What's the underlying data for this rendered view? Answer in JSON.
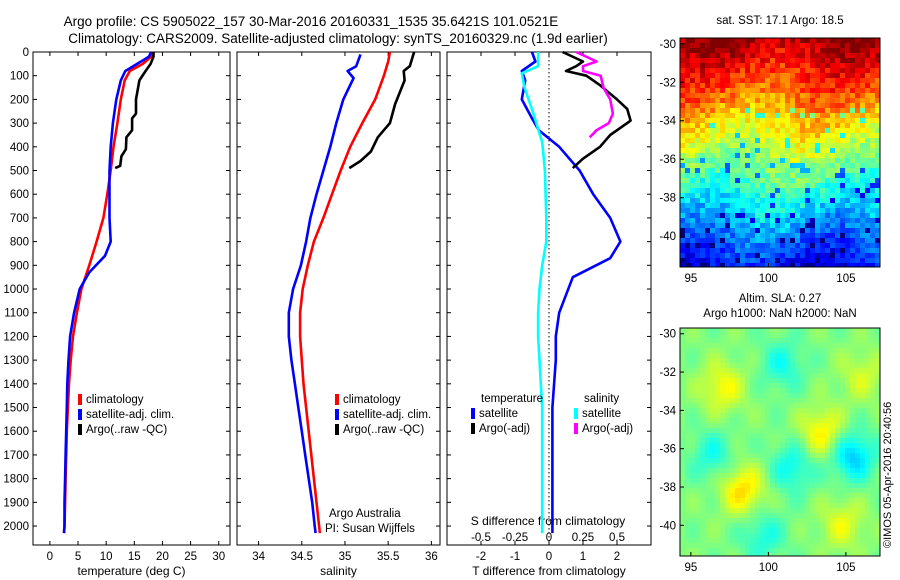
{
  "figure": {
    "title_line1": "Argo profile: CS 5905022_157 30-Mar-2016 20160331_1535 35.6421S 101.0521E",
    "title_line2": "Climatology: CARS2009. Satellite-adjusted climatology: synTS_20160329.nc (1.9d earlier)",
    "credit": "©IMOS 05-Apr-2016 20:40:56"
  },
  "colors": {
    "climatology": "#ff0000",
    "satellite": "#0000ff",
    "argo": "#000000",
    "satellite_s": "#00ffff",
    "argo_s": "#ff00ff"
  },
  "chart_data": [
    {
      "id": "temperature",
      "type": "line",
      "xlabel": "temperature (deg C)",
      "ylabel": "",
      "xlim": [
        -3,
        32
      ],
      "ylim": [
        0,
        2080
      ],
      "y_inverted": true,
      "xticks": [
        0,
        5,
        10,
        15,
        20,
        25,
        30
      ],
      "yticks": [
        0,
        100,
        200,
        300,
        400,
        500,
        600,
        700,
        800,
        900,
        1000,
        1100,
        1200,
        1300,
        1400,
        1500,
        1600,
        1700,
        1800,
        1900,
        2000
      ],
      "legend": {
        "position": "bottom-right",
        "entries": [
          "climatology",
          "satellite-adj. clim.",
          "Argo(..raw -QC)"
        ]
      },
      "series": [
        {
          "name": "climatology",
          "color_key": "climatology",
          "points": [
            [
              18.5,
              0
            ],
            [
              18.0,
              20
            ],
            [
              16.5,
              50
            ],
            [
              14.2,
              80
            ],
            [
              13.3,
              120
            ],
            [
              12.6,
              200
            ],
            [
              12.0,
              300
            ],
            [
              11.3,
              400
            ],
            [
              10.8,
              500
            ],
            [
              10.2,
              600
            ],
            [
              9.5,
              700
            ],
            [
              8.3,
              800
            ],
            [
              7.0,
              900
            ],
            [
              5.6,
              1000
            ],
            [
              4.8,
              1100
            ],
            [
              4.1,
              1200
            ],
            [
              3.7,
              1300
            ],
            [
              3.4,
              1400
            ],
            [
              3.2,
              1500
            ],
            [
              3.0,
              1600
            ],
            [
              2.9,
              1700
            ],
            [
              2.8,
              1800
            ],
            [
              2.7,
              1900
            ],
            [
              2.6,
              2000
            ],
            [
              2.5,
              2030
            ]
          ]
        },
        {
          "name": "satellite-adj. clim.",
          "color_key": "satellite",
          "points": [
            [
              18.0,
              0
            ],
            [
              17.6,
              20
            ],
            [
              15.5,
              50
            ],
            [
              13.4,
              80
            ],
            [
              12.6,
              120
            ],
            [
              11.8,
              200
            ],
            [
              11.2,
              300
            ],
            [
              10.8,
              400
            ],
            [
              10.6,
              500
            ],
            [
              10.6,
              600
            ],
            [
              10.6,
              700
            ],
            [
              10.8,
              800
            ],
            [
              9.8,
              860
            ],
            [
              7.0,
              930
            ],
            [
              5.3,
              1000
            ],
            [
              4.3,
              1100
            ],
            [
              3.6,
              1200
            ],
            [
              3.3,
              1300
            ],
            [
              3.1,
              1400
            ],
            [
              3.0,
              1500
            ],
            [
              2.9,
              1600
            ],
            [
              2.8,
              1700
            ],
            [
              2.7,
              1800
            ],
            [
              2.6,
              1900
            ],
            [
              2.6,
              2000
            ],
            [
              2.5,
              2030
            ]
          ]
        },
        {
          "name": "Argo(..raw -QC)",
          "color_key": "argo",
          "points": [
            [
              18.4,
              0
            ],
            [
              18.4,
              20
            ],
            [
              17.9,
              50
            ],
            [
              17.0,
              80
            ],
            [
              15.9,
              120
            ],
            [
              15.3,
              200
            ],
            [
              15.3,
              260
            ],
            [
              14.6,
              280
            ],
            [
              14.6,
              330
            ],
            [
              13.6,
              360
            ],
            [
              13.5,
              410
            ],
            [
              12.7,
              440
            ],
            [
              12.5,
              480
            ],
            [
              11.6,
              490
            ]
          ]
        }
      ]
    },
    {
      "id": "salinity",
      "type": "line",
      "xlabel": "salinity",
      "ylabel": "",
      "xlim": [
        33.75,
        36.1
      ],
      "ylim": [
        0,
        2080
      ],
      "y_inverted": true,
      "xticks": [
        34,
        34.5,
        35,
        35.5,
        36
      ],
      "annotation_line1": "Argo Australia",
      "annotation_line2": "PI: Susan Wijffels",
      "legend": {
        "position": "bottom-right",
        "entries": [
          "climatology",
          "satellite-adj. clim.",
          "Argo(..raw -QC)"
        ]
      },
      "series": [
        {
          "name": "climatology",
          "color_key": "climatology",
          "points": [
            [
              35.52,
              0
            ],
            [
              35.5,
              40
            ],
            [
              35.45,
              100
            ],
            [
              35.35,
              200
            ],
            [
              35.2,
              300
            ],
            [
              35.06,
              400
            ],
            [
              34.95,
              500
            ],
            [
              34.85,
              600
            ],
            [
              34.75,
              700
            ],
            [
              34.64,
              800
            ],
            [
              34.57,
              900
            ],
            [
              34.51,
              1000
            ],
            [
              34.48,
              1100
            ],
            [
              34.48,
              1200
            ],
            [
              34.5,
              1300
            ],
            [
              34.52,
              1400
            ],
            [
              34.55,
              1500
            ],
            [
              34.58,
              1600
            ],
            [
              34.61,
              1700
            ],
            [
              34.64,
              1800
            ],
            [
              34.67,
              1900
            ],
            [
              34.7,
              2000
            ],
            [
              34.71,
              2030
            ]
          ]
        },
        {
          "name": "satellite-adj. clim.",
          "color_key": "satellite",
          "points": [
            [
              35.18,
              10
            ],
            [
              35.13,
              60
            ],
            [
              35.03,
              80
            ],
            [
              35.1,
              110
            ],
            [
              34.98,
              200
            ],
            [
              34.9,
              300
            ],
            [
              34.83,
              400
            ],
            [
              34.75,
              500
            ],
            [
              34.67,
              600
            ],
            [
              34.6,
              700
            ],
            [
              34.55,
              800
            ],
            [
              34.49,
              900
            ],
            [
              34.4,
              1000
            ],
            [
              34.35,
              1100
            ],
            [
              34.35,
              1200
            ],
            [
              34.38,
              1300
            ],
            [
              34.42,
              1400
            ],
            [
              34.46,
              1500
            ],
            [
              34.5,
              1600
            ],
            [
              34.54,
              1700
            ],
            [
              34.58,
              1800
            ],
            [
              34.62,
              1900
            ],
            [
              34.65,
              2000
            ],
            [
              34.66,
              2030
            ]
          ]
        },
        {
          "name": "Argo(..raw -QC)",
          "color_key": "argo",
          "points": [
            [
              35.8,
              0
            ],
            [
              35.75,
              60
            ],
            [
              35.68,
              80
            ],
            [
              35.69,
              120
            ],
            [
              35.58,
              220
            ],
            [
              35.52,
              300
            ],
            [
              35.38,
              360
            ],
            [
              35.3,
              420
            ],
            [
              35.18,
              460
            ],
            [
              35.05,
              490
            ]
          ]
        }
      ]
    },
    {
      "id": "difference",
      "type": "line",
      "xlabel": "T difference from climatology",
      "x2label": "S difference from climatology",
      "ylabel": "",
      "xlim": [
        -3,
        3
      ],
      "x2lim": [
        -0.75,
        0.75
      ],
      "ylim": [
        0,
        2080
      ],
      "y_inverted": true,
      "xticks": [
        -2,
        -1,
        0,
        1,
        2
      ],
      "x2ticks": [
        -0.5,
        -0.25,
        0,
        0.25,
        0.5
      ],
      "zero_line": true,
      "legend_left_title": "temperature",
      "legend_right_title": "salinity",
      "legend_left_entries": [
        "satellite",
        "Argo(-adj)"
      ],
      "legend_right_entries": [
        "satellite",
        "Argo(-adj)"
      ],
      "series": [
        {
          "name": "satellite",
          "quantity": "T",
          "color_key": "satellite",
          "points": [
            [
              -0.5,
              0
            ],
            [
              -0.4,
              40
            ],
            [
              -0.8,
              80
            ],
            [
              -0.7,
              120
            ],
            [
              -0.8,
              200
            ],
            [
              -0.5,
              280
            ],
            [
              -0.3,
              330
            ],
            [
              0.3,
              400
            ],
            [
              0.6,
              450
            ],
            [
              0.9,
              500
            ],
            [
              1.3,
              600
            ],
            [
              1.8,
              700
            ],
            [
              2.1,
              800
            ],
            [
              1.8,
              870
            ],
            [
              0.7,
              950
            ],
            [
              0.3,
              1100
            ],
            [
              0.2,
              1200
            ],
            [
              0.2,
              1300
            ],
            [
              0.15,
              1400
            ],
            [
              0.1,
              1500
            ],
            [
              0.1,
              1600
            ],
            [
              0.1,
              1700
            ],
            [
              0.1,
              1800
            ],
            [
              0.1,
              1900
            ],
            [
              0.1,
              2030
            ]
          ]
        },
        {
          "name": "Argo(-adj)",
          "quantity": "T",
          "color_key": "argo",
          "points": [
            [
              0.4,
              0
            ],
            [
              1.0,
              40
            ],
            [
              0.8,
              60
            ],
            [
              0.5,
              80
            ],
            [
              1.1,
              100
            ],
            [
              1.5,
              140
            ],
            [
              2.0,
              200
            ],
            [
              2.3,
              240
            ],
            [
              2.4,
              290
            ],
            [
              1.8,
              350
            ],
            [
              1.5,
              400
            ],
            [
              1.0,
              450
            ],
            [
              0.7,
              490
            ]
          ]
        },
        {
          "name": "satellite",
          "quantity": "S",
          "color_key": "satellite_s",
          "points": [
            [
              -0.08,
              0
            ],
            [
              -0.08,
              60
            ],
            [
              -0.2,
              90
            ],
            [
              -0.18,
              150
            ],
            [
              -0.12,
              250
            ],
            [
              -0.05,
              380
            ],
            [
              -0.03,
              500
            ],
            [
              -0.02,
              700
            ],
            [
              -0.02,
              800
            ],
            [
              -0.05,
              900
            ],
            [
              -0.07,
              1000
            ],
            [
              -0.08,
              1100
            ],
            [
              -0.08,
              1200
            ],
            [
              -0.07,
              1300
            ],
            [
              -0.06,
              1400
            ],
            [
              -0.05,
              1500
            ],
            [
              -0.05,
              1600
            ],
            [
              -0.05,
              1700
            ],
            [
              -0.05,
              1800
            ],
            [
              -0.05,
              1900
            ],
            [
              -0.05,
              2030
            ]
          ]
        },
        {
          "name": "Argo(-adj)",
          "quantity": "S",
          "color_key": "argo_s",
          "points": [
            [
              0.2,
              0
            ],
            [
              0.35,
              40
            ],
            [
              0.25,
              60
            ],
            [
              0.25,
              80
            ],
            [
              0.38,
              100
            ],
            [
              0.4,
              150
            ],
            [
              0.45,
              200
            ],
            [
              0.47,
              260
            ],
            [
              0.44,
              300
            ],
            [
              0.35,
              330
            ],
            [
              0.3,
              360
            ]
          ]
        }
      ]
    },
    {
      "id": "sst-map",
      "type": "heatmap",
      "title": "sat. SST: 17.1  Argo: 18.5",
      "xticks": [
        95,
        100,
        105
      ],
      "yticks": [
        -30,
        -32,
        -34,
        -36,
        -38,
        -40
      ],
      "xlim": [
        94.3,
        107.2
      ],
      "ylim": [
        -41.6,
        -29.7
      ],
      "colormap": "jet",
      "field": "sea surface temperature, warm in the north (~-30) to cold in the south (~-41)",
      "profile_location": [
        101.0521,
        -35.6421
      ]
    },
    {
      "id": "sla-map",
      "type": "heatmap",
      "title_line1": "Altim. SLA: 0.27",
      "title_line2": "Argo h1000: NaN h2000: NaN",
      "xticks": [
        95,
        100,
        105
      ],
      "yticks": [
        -30,
        -32,
        -34,
        -36,
        -38,
        -40
      ],
      "xlim": [
        94.3,
        107.2
      ],
      "ylim": [
        -41.6,
        -29.7
      ],
      "colormap": "jet",
      "field": "sea level anomaly, mostly green with scattered yellow/orange highs and cyan lows",
      "profile_location": [
        101.0521,
        -35.6421
      ]
    }
  ]
}
